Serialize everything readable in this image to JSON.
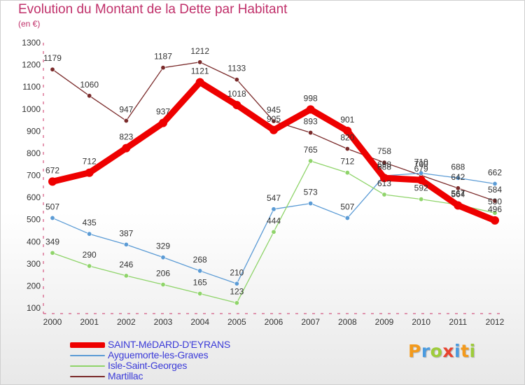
{
  "chart_data": {
    "type": "line",
    "title": "Evolution du Montant de la Dette par Habitant",
    "subtitle": "(en €)",
    "x": [
      "2000",
      "2001",
      "2002",
      "2003",
      "2004",
      "2005",
      "2006",
      "2007",
      "2008",
      "2009",
      "2010",
      "2011",
      "2012"
    ],
    "ylim": [
      100,
      1300
    ],
    "y_ticks": [
      100,
      200,
      300,
      400,
      500,
      600,
      700,
      800,
      900,
      1000,
      1100,
      1200,
      1300
    ],
    "grid": false,
    "legend_position": "bottom-left",
    "series": [
      {
        "name": "SAINT-MéDARD-D'EYRANS",
        "color": "#ee0000",
        "values": [
          672,
          712,
          823,
          937,
          1121,
          1018,
          905,
          998,
          901,
          688,
          679,
          564,
          496
        ]
      },
      {
        "name": "Ayguemorte-les-Graves",
        "color": "#5b9bd5",
        "values": [
          507,
          435,
          387,
          329,
          268,
          210,
          547,
          573,
          507,
          698,
          710,
          688,
          662
        ]
      },
      {
        "name": "Isle-Saint-Georges",
        "color": "#8fd46a",
        "values": [
          349,
          290,
          246,
          206,
          165,
          123,
          444,
          765,
          712,
          613,
          592,
          567,
          530
        ]
      },
      {
        "name": "Martillac",
        "color": "#7a2a2a",
        "values": [
          1179,
          1060,
          947,
          1187,
          1212,
          1133,
          945,
          893,
          820,
          758,
          700,
          642,
          584
        ]
      }
    ]
  },
  "brand": {
    "text": "Proxiti",
    "colors": [
      "#f39a1c",
      "#4a9be0",
      "#9ecc3a",
      "#e8432f",
      "#4a9be0",
      "#f39a1c",
      "#9ecc3a"
    ]
  }
}
